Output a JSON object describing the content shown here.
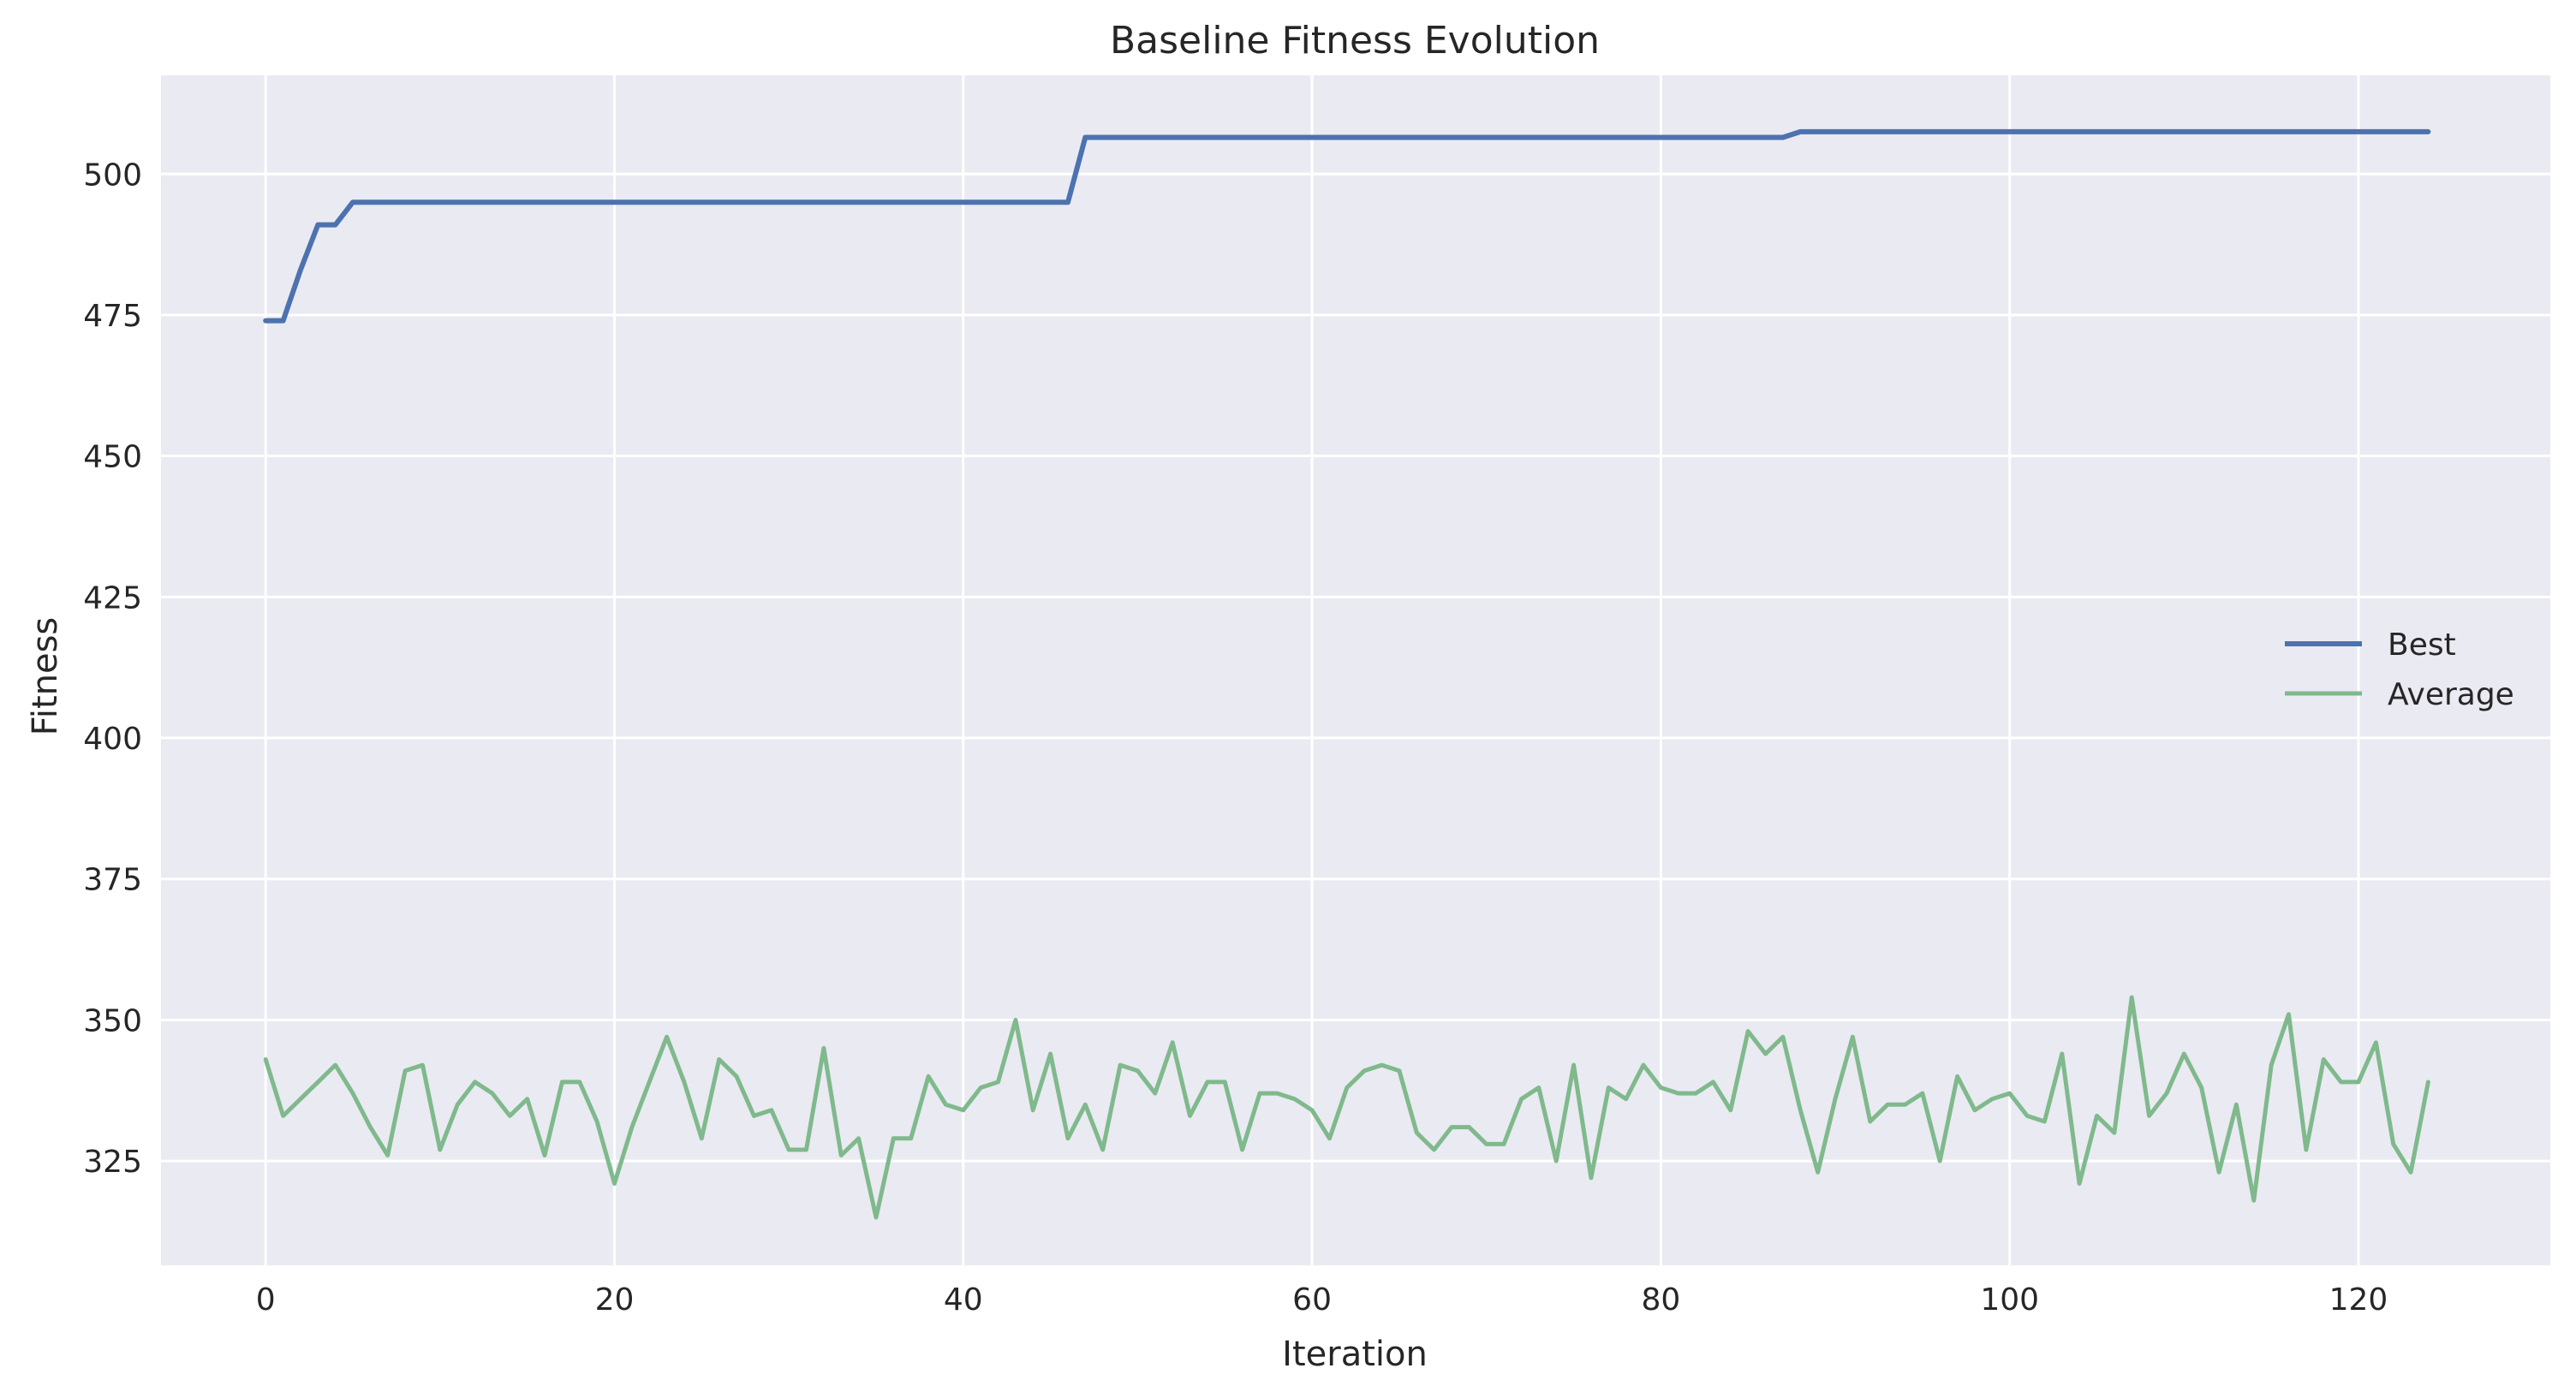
{
  "chart_data": {
    "type": "line",
    "title": "Baseline Fitness Evolution",
    "xlabel": "Iteration",
    "ylabel": "Fitness",
    "xlim": [
      -6,
      131
    ],
    "ylim": [
      306.5,
      517.5
    ],
    "xticks": [
      0,
      20,
      40,
      60,
      80,
      100,
      120
    ],
    "yticks": [
      325,
      350,
      375,
      400,
      425,
      450,
      475,
      500
    ],
    "grid": true,
    "legend_position": "center-right",
    "series": [
      {
        "name": "Best",
        "color": "#4c72b0",
        "values": [
          474,
          474,
          483,
          491,
          491,
          495,
          495,
          495,
          495,
          495,
          495,
          495,
          495,
          495,
          495,
          495,
          495,
          495,
          495,
          495,
          495,
          495,
          495,
          495,
          495,
          495,
          495,
          495,
          495,
          495,
          495,
          495,
          495,
          495,
          495,
          495,
          495,
          495,
          495,
          495,
          495,
          495,
          495,
          495,
          495,
          495,
          495,
          506.5,
          506.5,
          506.5,
          506.5,
          506.5,
          506.5,
          506.5,
          506.5,
          506.5,
          506.5,
          506.5,
          506.5,
          506.5,
          506.5,
          506.5,
          506.5,
          506.5,
          506.5,
          506.5,
          506.5,
          506.5,
          506.5,
          506.5,
          506.5,
          506.5,
          506.5,
          506.5,
          506.5,
          506.5,
          506.5,
          506.5,
          506.5,
          506.5,
          506.5,
          506.5,
          506.5,
          506.5,
          506.5,
          506.5,
          506.5,
          506.5,
          507.5,
          507.5,
          507.5,
          507.5,
          507.5,
          507.5,
          507.5,
          507.5,
          507.5,
          507.5,
          507.5,
          507.5,
          507.5,
          507.5,
          507.5,
          507.5,
          507.5,
          507.5,
          507.5,
          507.5,
          507.5,
          507.5,
          507.5,
          507.5,
          507.5,
          507.5,
          507.5,
          507.5,
          507.5,
          507.5,
          507.5,
          507.5,
          507.5,
          507.5,
          507.5,
          507.5,
          507.5
        ]
      },
      {
        "name": "Average",
        "color": "#7fb98c",
        "values": [
          343,
          333,
          336,
          339,
          342,
          337,
          331,
          326,
          341,
          342,
          327,
          335,
          339,
          337,
          333,
          336,
          326,
          339,
          339,
          332,
          321,
          331,
          339,
          347,
          339,
          329,
          343,
          340,
          333,
          334,
          327,
          327,
          345,
          326,
          329,
          315,
          329,
          329,
          340,
          335,
          334,
          338,
          339,
          350,
          334,
          344,
          329,
          335,
          327,
          342,
          341,
          337,
          346,
          333,
          339,
          339,
          327,
          337,
          337,
          336,
          334,
          329,
          338,
          341,
          342,
          341,
          330,
          327,
          331,
          331,
          328,
          328,
          336,
          338,
          325,
          342,
          322,
          338,
          336,
          342,
          338,
          337,
          337,
          339,
          334,
          348,
          344,
          347,
          334,
          323,
          336,
          347,
          332,
          335,
          335,
          337,
          325,
          340,
          334,
          336,
          337,
          333,
          332,
          344,
          321,
          333,
          330,
          354,
          333,
          337,
          344,
          338,
          323,
          335,
          318,
          342,
          351,
          327,
          343,
          339,
          339,
          346,
          328,
          323,
          339
        ]
      }
    ]
  }
}
